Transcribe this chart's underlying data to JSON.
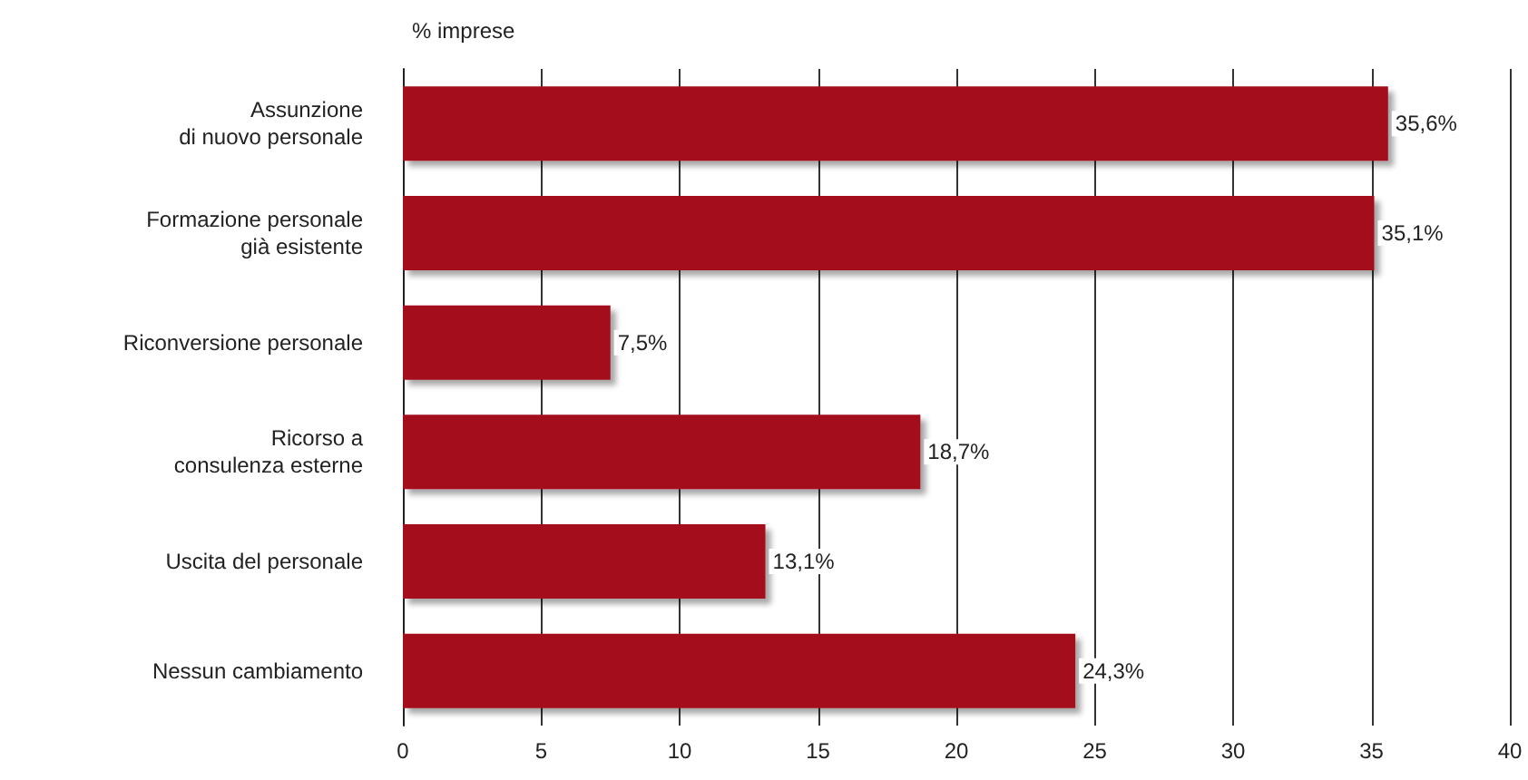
{
  "chart_data": {
    "type": "bar",
    "orientation": "horizontal",
    "xlabel": "% imprese",
    "categories": [
      "Assunzione\ndi nuovo personale",
      "Formazione personale\ngià esistente",
      "Riconversione personale",
      "Ricorso a\nconsulenza esterne",
      "Uscita del personale",
      "Nessun cambiamento"
    ],
    "values": [
      35.6,
      35.1,
      7.5,
      18.7,
      13.1,
      24.3
    ],
    "value_labels": [
      "35,6%",
      "35,1%",
      "7,5%",
      "18,7%",
      "13,1%",
      "24,3%"
    ],
    "color": "#a3111a",
    "xlim": [
      0,
      40
    ],
    "xticks": [
      0,
      5,
      10,
      15,
      20,
      25,
      30,
      35,
      40
    ],
    "grid": "x"
  }
}
